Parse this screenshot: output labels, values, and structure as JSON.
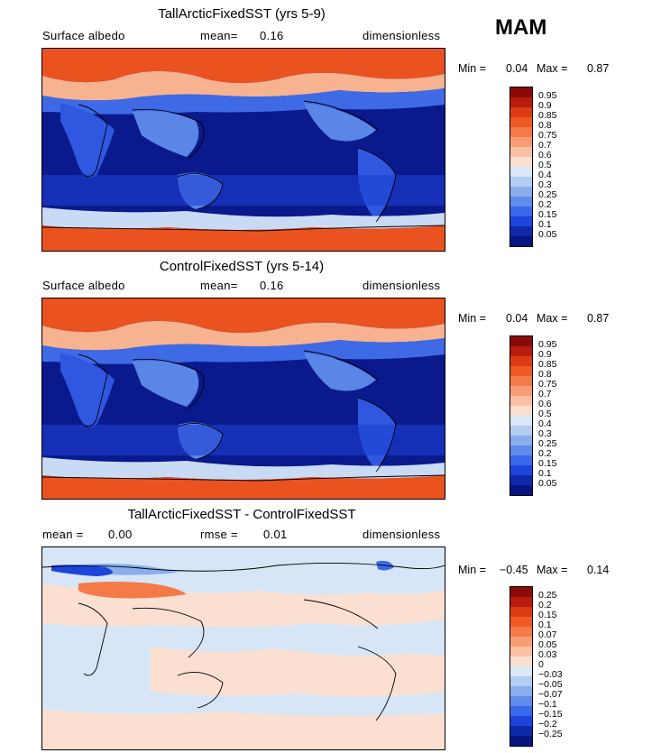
{
  "season": "MAM",
  "panels": [
    {
      "id": "tall",
      "title": "TallArcticFixedSST (yrs 5-9)",
      "left_label": "Surface albedo",
      "stat1_label": "mean=",
      "stat1_value": "0.16",
      "units": "dimensionless",
      "min_label": "Min =",
      "min_value": "0.04",
      "max_label": "Max =",
      "max_value": "0.87",
      "colorbar": {
        "labels": [
          "0.95",
          "0.9",
          "0.85",
          "0.8",
          "0.75",
          "0.7",
          "0.6",
          "0.5",
          "0.4",
          "0.3",
          "0.25",
          "0.2",
          "0.15",
          "0.1",
          "0.05"
        ],
        "colors": [
          "#8a0a0a",
          "#b81c0e",
          "#dc3a12",
          "#ef5a24",
          "#f47a48",
          "#f79d76",
          "#f9c0a4",
          "#fbe0d2",
          "#dbe8f8",
          "#b4cdf2",
          "#8aaeec",
          "#5f8cea",
          "#3a68ea",
          "#1d45db",
          "#0e29a8",
          "#071580"
        ]
      }
    },
    {
      "id": "control",
      "title": "ControlFixedSST (yrs 5-14)",
      "left_label": "Surface albedo",
      "stat1_label": "mean=",
      "stat1_value": "0.16",
      "units": "dimensionless",
      "min_label": "Min =",
      "min_value": "0.04",
      "max_label": "Max =",
      "max_value": "0.87",
      "colorbar": {
        "labels": [
          "0.95",
          "0.9",
          "0.85",
          "0.8",
          "0.75",
          "0.7",
          "0.6",
          "0.5",
          "0.4",
          "0.3",
          "0.25",
          "0.2",
          "0.15",
          "0.1",
          "0.05"
        ],
        "colors": [
          "#8a0a0a",
          "#b81c0e",
          "#dc3a12",
          "#ef5a24",
          "#f47a48",
          "#f79d76",
          "#f9c0a4",
          "#fbe0d2",
          "#dbe8f8",
          "#b4cdf2",
          "#8aaeec",
          "#5f8cea",
          "#3a68ea",
          "#1d45db",
          "#0e29a8",
          "#071580"
        ]
      }
    },
    {
      "id": "diff",
      "title": "TallArcticFixedSST - ControlFixedSST",
      "left_label": "mean =",
      "left_value": "0.00",
      "stat1_label": "rmse =",
      "stat1_value": "0.01",
      "units": "dimensionless",
      "min_label": "Min =",
      "min_value": "−0.45",
      "max_label": "Max =",
      "max_value": "0.14",
      "colorbar": {
        "labels": [
          "0.25",
          "0.2",
          "0.15",
          "0.1",
          "0.07",
          "0.05",
          "0.03",
          "0",
          "−0.03",
          "−0.05",
          "−0.07",
          "−0.1",
          "−0.15",
          "−0.2",
          "−0.25"
        ],
        "colors": [
          "#8a0a0a",
          "#b81c0e",
          "#dc3a12",
          "#ef5a24",
          "#f47a48",
          "#f79d76",
          "#f9c0a4",
          "#fbe0d2",
          "#dbe8f8",
          "#b4cdf2",
          "#8aaeec",
          "#5f8cea",
          "#3a68ea",
          "#1d45db",
          "#0e29a8",
          "#071580"
        ]
      }
    }
  ]
}
